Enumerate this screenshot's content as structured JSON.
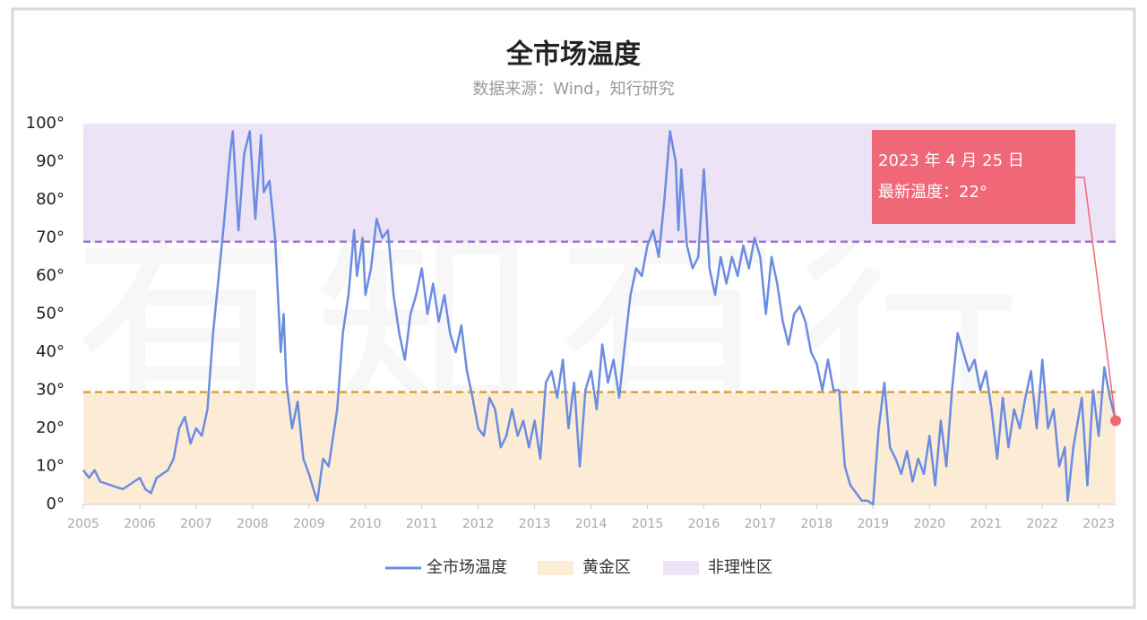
{
  "chart_data": {
    "type": "line",
    "title": "全市场温度",
    "subtitle": "数据来源：Wind，知行研究",
    "watermark": "有知有行",
    "annotation": {
      "lines": [
        "2023 年 4 月 25 日",
        "最新温度：22°"
      ],
      "color": "#f06878"
    },
    "xlim": [
      2005,
      2023.3
    ],
    "xticks": [
      2005,
      2006,
      2007,
      2008,
      2009,
      2010,
      2011,
      2012,
      2013,
      2014,
      2015,
      2016,
      2017,
      2018,
      2019,
      2020,
      2021,
      2022,
      2023
    ],
    "ylim": [
      0,
      100
    ],
    "yticks": [
      {
        "value": 0,
        "label": "0°"
      },
      {
        "value": 10,
        "label": "10°"
      },
      {
        "value": 20,
        "label": "20°"
      },
      {
        "value": 30,
        "label": "30°"
      },
      {
        "value": 40,
        "label": "40°"
      },
      {
        "value": 50,
        "label": "50°"
      },
      {
        "value": 60,
        "label": "60°"
      },
      {
        "value": 70,
        "label": "70°"
      },
      {
        "value": 80,
        "label": "80°"
      },
      {
        "value": 90,
        "label": "90°"
      },
      {
        "value": 100,
        "label": "100°"
      }
    ],
    "bands": [
      {
        "name": "黄金区",
        "range": [
          0,
          29.5
        ],
        "color": "#fcecd6",
        "line_color": "#d9a036"
      },
      {
        "name": "非理性区",
        "range": [
          69,
          100
        ],
        "color": "#ece3f7",
        "line_color": "#a077c8"
      }
    ],
    "series": [
      {
        "name": "全市场温度",
        "color": "#6b8ce0",
        "x": [
          2005.0,
          2005.1,
          2005.2,
          2005.3,
          2005.5,
          2005.7,
          2005.9,
          2006.0,
          2006.1,
          2006.2,
          2006.3,
          2006.5,
          2006.6,
          2006.7,
          2006.8,
          2006.9,
          2007.0,
          2007.1,
          2007.2,
          2007.3,
          2007.4,
          2007.5,
          2007.6,
          2007.65,
          2007.75,
          2007.85,
          2007.95,
          2008.05,
          2008.15,
          2008.2,
          2008.3,
          2008.4,
          2008.5,
          2008.55,
          2008.6,
          2008.7,
          2008.8,
          2008.9,
          2009.0,
          2009.1,
          2009.15,
          2009.25,
          2009.35,
          2009.5,
          2009.6,
          2009.7,
          2009.8,
          2009.85,
          2009.95,
          2010.0,
          2010.1,
          2010.2,
          2010.3,
          2010.4,
          2010.5,
          2010.6,
          2010.7,
          2010.8,
          2010.9,
          2011.0,
          2011.1,
          2011.2,
          2011.3,
          2011.4,
          2011.5,
          2011.6,
          2011.7,
          2011.8,
          2011.9,
          2012.0,
          2012.1,
          2012.2,
          2012.3,
          2012.4,
          2012.5,
          2012.6,
          2012.7,
          2012.8,
          2012.9,
          2013.0,
          2013.1,
          2013.2,
          2013.3,
          2013.4,
          2013.5,
          2013.6,
          2013.7,
          2013.8,
          2013.9,
          2014.0,
          2014.1,
          2014.2,
          2014.3,
          2014.4,
          2014.5,
          2014.6,
          2014.7,
          2014.8,
          2014.9,
          2015.0,
          2015.1,
          2015.2,
          2015.3,
          2015.4,
          2015.5,
          2015.55,
          2015.6,
          2015.7,
          2015.8,
          2015.9,
          2016.0,
          2016.1,
          2016.2,
          2016.3,
          2016.4,
          2016.5,
          2016.6,
          2016.7,
          2016.8,
          2016.9,
          2017.0,
          2017.1,
          2017.2,
          2017.3,
          2017.4,
          2017.5,
          2017.6,
          2017.7,
          2017.8,
          2017.9,
          2018.0,
          2018.1,
          2018.2,
          2018.3,
          2018.4,
          2018.5,
          2018.6,
          2018.7,
          2018.8,
          2018.9,
          2019.0,
          2019.1,
          2019.2,
          2019.3,
          2019.4,
          2019.5,
          2019.6,
          2019.7,
          2019.8,
          2019.9,
          2020.0,
          2020.1,
          2020.2,
          2020.3,
          2020.4,
          2020.5,
          2020.6,
          2020.7,
          2020.8,
          2020.9,
          2021.0,
          2021.1,
          2021.2,
          2021.3,
          2021.4,
          2021.5,
          2021.6,
          2021.7,
          2021.8,
          2021.9,
          2022.0,
          2022.1,
          2022.2,
          2022.3,
          2022.4,
          2022.45,
          2022.55,
          2022.7,
          2022.8,
          2022.9,
          2023.0,
          2023.1,
          2023.2,
          2023.3
        ],
        "values": [
          9,
          7,
          9,
          6,
          5,
          4,
          6,
          7,
          4,
          3,
          7,
          9,
          12,
          20,
          23,
          16,
          20,
          18,
          25,
          45,
          60,
          75,
          92,
          98,
          72,
          92,
          98,
          75,
          97,
          82,
          85,
          70,
          40,
          50,
          32,
          20,
          27,
          12,
          8,
          3,
          1,
          12,
          10,
          25,
          45,
          55,
          72,
          60,
          70,
          55,
          62,
          75,
          70,
          72,
          55,
          45,
          38,
          50,
          55,
          62,
          50,
          58,
          48,
          55,
          45,
          40,
          47,
          35,
          28,
          20,
          18,
          28,
          25,
          15,
          18,
          25,
          18,
          22,
          15,
          22,
          12,
          32,
          35,
          28,
          38,
          20,
          32,
          10,
          30,
          35,
          25,
          42,
          32,
          38,
          28,
          42,
          55,
          62,
          60,
          68,
          72,
          65,
          80,
          98,
          90,
          72,
          88,
          68,
          62,
          65,
          88,
          62,
          55,
          65,
          58,
          65,
          60,
          68,
          62,
          70,
          65,
          50,
          65,
          58,
          48,
          42,
          50,
          52,
          48,
          40,
          37,
          30,
          38,
          30,
          30,
          10,
          5,
          3,
          1,
          1,
          0,
          20,
          32,
          15,
          12,
          8,
          14,
          6,
          12,
          8,
          18,
          5,
          22,
          10,
          30,
          45,
          40,
          35,
          38,
          30,
          35,
          25,
          12,
          28,
          15,
          25,
          20,
          28,
          35,
          20,
          38,
          20,
          25,
          10,
          15,
          1,
          15,
          28,
          5,
          30,
          18,
          36,
          28,
          22
        ]
      }
    ]
  }
}
